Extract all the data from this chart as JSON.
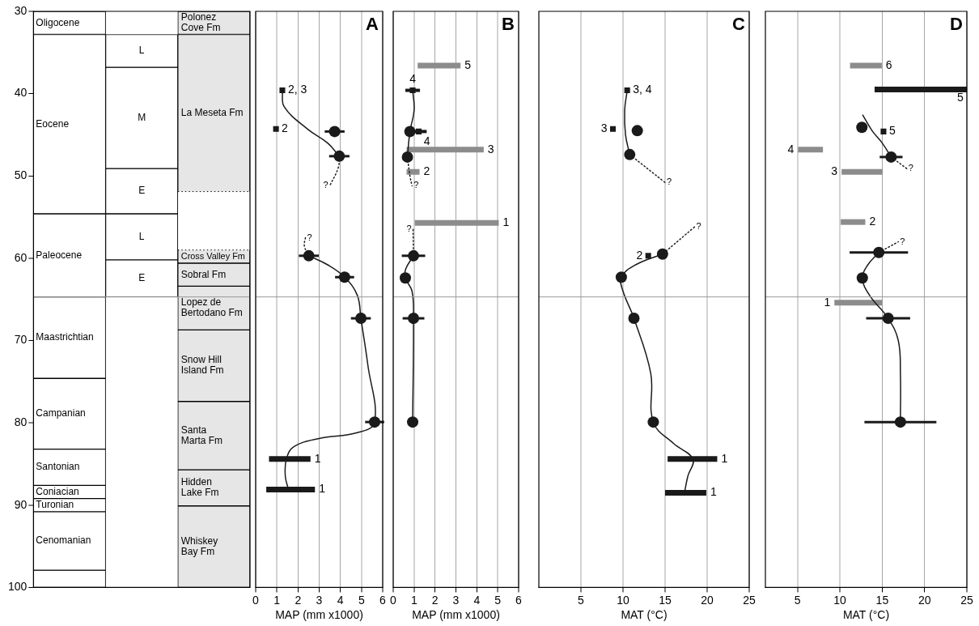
{
  "chart_data": [
    {
      "type": "bar",
      "categories": [
        null,
        null,
        null
      ],
      "ylim": [
        100,
        30
      ],
      "yticks": [
        30,
        40,
        50,
        60,
        70,
        80,
        90,
        100
      ],
      "tick_labels": "y",
      "series": [
        {
          "name": "Oligocene",
          "color": "#ffffff",
          "base": [
            30,
            null,
            null
          ],
          "values": [
            2.8,
            null,
            null
          ]
        },
        {
          "name": "Eocene",
          "color": "#ffffff",
          "base": [
            32.8,
            null,
            null
          ],
          "values": [
            21.8,
            null,
            null
          ]
        },
        {
          "name": "Paleocene",
          "color": "#ffffff",
          "base": [
            54.6,
            null,
            null
          ],
          "values": [
            10.1,
            null,
            null
          ]
        },
        {
          "name": "Maastrichtian",
          "color": "#ffffff",
          "base": [
            64.7,
            null,
            null
          ],
          "values": [
            9.9,
            null,
            null
          ]
        },
        {
          "name": "Campanian",
          "color": "#ffffff",
          "base": [
            74.6,
            null,
            null
          ],
          "values": [
            8.6,
            null,
            null
          ]
        },
        {
          "name": "Santonian",
          "color": "#ffffff",
          "base": [
            83.2,
            null,
            null
          ],
          "values": [
            4.4,
            null,
            null
          ]
        },
        {
          "name": "Coniacian",
          "color": "#ffffff",
          "base": [
            87.6,
            null,
            null
          ],
          "values": [
            1.6,
            null,
            null
          ]
        },
        {
          "name": "Turonian",
          "color": "#ffffff",
          "base": [
            89.2,
            null,
            null
          ],
          "values": [
            1.6,
            null,
            null
          ]
        },
        {
          "name": "Cenomanian",
          "color": "#ffffff",
          "base": [
            90.8,
            null,
            null
          ],
          "values": [
            7.1,
            null,
            null
          ]
        },
        {
          "color": "#ffffff",
          "base": [
            97.9,
            null,
            null
          ],
          "values": [
            2.1,
            null,
            null
          ]
        },
        {
          "name": "L",
          "color": "#ffffff",
          "base": [
            null,
            32.8,
            null
          ],
          "values": [
            null,
            4.0,
            null
          ]
        },
        {
          "name": "M",
          "color": "#ffffff",
          "base": [
            null,
            36.8,
            null
          ],
          "values": [
            null,
            12.3,
            null
          ]
        },
        {
          "name": "E",
          "color": "#ffffff",
          "base": [
            null,
            49.1,
            null
          ],
          "values": [
            null,
            5.5,
            null
          ]
        },
        {
          "name": "L",
          "color": "#ffffff",
          "base": [
            null,
            54.6,
            null
          ],
          "values": [
            null,
            5.6,
            null
          ]
        },
        {
          "name": "E",
          "color": "#ffffff",
          "base": [
            null,
            60.2,
            null
          ],
          "values": [
            null,
            4.5,
            null
          ]
        },
        {
          "name": "Polonez Cove Fm",
          "color": "#e6e6e6",
          "base": [
            null,
            null,
            30
          ],
          "values": [
            null,
            null,
            2.8
          ]
        },
        {
          "name": "La Meseta Fm",
          "color": "#e6e6e6",
          "line_style": "dotted",
          "base": [
            null,
            null,
            32.8
          ],
          "values": [
            null,
            null,
            19.1
          ]
        },
        {
          "name": "Cross Valley Fm",
          "color": "#e6e6e6",
          "line_style": "dotted",
          "base": [
            null,
            null,
            59.0
          ],
          "values": [
            null,
            null,
            1.6
          ]
        },
        {
          "name": "Sobral Fm",
          "color": "#e6e6e6",
          "base": [
            null,
            null,
            60.6
          ],
          "values": [
            null,
            null,
            2.8
          ]
        },
        {
          "name": "Lopez de Bertodano Fm",
          "color": "#e6e6e6",
          "base": [
            null,
            null,
            63.4
          ],
          "values": [
            null,
            null,
            5.3
          ]
        },
        {
          "name": "Snow Hill Island Fm",
          "color": "#e6e6e6",
          "base": [
            null,
            null,
            68.7
          ],
          "values": [
            null,
            null,
            8.7
          ]
        },
        {
          "name": "Santa Marta Fm",
          "color": "#e6e6e6",
          "base": [
            null,
            null,
            77.4
          ],
          "values": [
            null,
            null,
            8.3
          ]
        },
        {
          "name": "Hidden Lake Fm",
          "color": "#e6e6e6",
          "base": [
            null,
            null,
            85.7
          ],
          "values": [
            null,
            null,
            4.4
          ]
        },
        {
          "name": "Whiskey Bay Fm",
          "color": "#e6e6e6",
          "base": [
            null,
            null,
            90.1
          ],
          "values": [
            null,
            null,
            9.9
          ]
        }
      ],
      "ref_lines": [
        {
          "axis": "y",
          "value": 64.7,
          "color": "#999999"
        }
      ]
    },
    {
      "type": "scatter",
      "title": "A",
      "xlabel": "MAP (mm x1000)",
      "xlim": [
        0,
        6
      ],
      "xticks": [
        0,
        1,
        2,
        3,
        4,
        5,
        6
      ],
      "ylim": [
        100,
        30
      ],
      "tick_labels": "x",
      "grid": "x",
      "ref_lines": [
        {
          "axis": "y",
          "value": 64.7,
          "color": "#999999"
        }
      ],
      "annotations": [
        {
          "text": "2, 3",
          "x": 1.26,
          "y": 39.6
        },
        {
          "text": "2",
          "x": 0.96,
          "y": 44.3
        },
        {
          "text": "1",
          "x": 2.59,
          "y": 84.4
        },
        {
          "text": "1",
          "x": 2.8,
          "y": 88.1
        },
        {
          "text": "?",
          "x": 3.5,
          "y": 51.2
        },
        {
          "text": "?",
          "x": 2.35,
          "y": 57.5
        }
      ],
      "series": [
        {
          "type": "line",
          "line_style": "solid",
          "color": "#1a1a1a",
          "x": [
            1.26,
            1.35,
            2.45,
            3.4,
            3.95
          ],
          "values": [
            39.6,
            41.6,
            44.3,
            46,
            47.6
          ]
        },
        {
          "type": "line",
          "line_style": "dotted",
          "color": "#1a1a1a",
          "x": [
            3.95,
            3.9,
            3.5
          ],
          "values": [
            47.6,
            49,
            51.2
          ]
        },
        {
          "type": "line",
          "line_style": "dotted",
          "color": "#1a1a1a",
          "x": [
            2.35,
            2.3,
            2.51
          ],
          "values": [
            57.5,
            58.5,
            59.7
          ]
        },
        {
          "type": "line",
          "line_style": "solid",
          "color": "#1a1a1a",
          "x": [
            2.51,
            3.4,
            4.2,
            4.8,
            4.97,
            5.3,
            5.62,
            4.8,
            3.0,
            1.8,
            1.45,
            1.4,
            1.55
          ],
          "values": [
            59.7,
            60.8,
            62.3,
            64.5,
            67.3,
            73,
            79.9,
            81.2,
            81.9,
            82.9,
            84.4,
            86.5,
            88.1
          ]
        },
        {
          "type": "line",
          "line_style": "solid",
          "color": "#1a1a1a",
          "x": [
            0.63,
            2.59
          ],
          "values": [
            84.4,
            84.4
          ]
        },
        {
          "type": "line",
          "line_style": "solid",
          "color": "#1a1a1a",
          "x": [
            0.5,
            2.8
          ],
          "values": [
            88.1,
            88.1
          ]
        },
        {
          "type": "scatter",
          "marker": "circle",
          "color": "#1a1a1a",
          "x": [
            3.73,
            3.95,
            2.51,
            4.2,
            4.97,
            5.62
          ],
          "values": [
            44.6,
            47.6,
            59.7,
            62.3,
            67.3,
            79.9
          ],
          "xerrors": [
            0.47,
            0.48,
            0.47,
            0.45,
            0.47,
            0.45
          ]
        },
        {
          "type": "scatter",
          "marker": "square",
          "color": "#1a1a1a",
          "x": [
            1.26,
            0.96
          ],
          "values": [
            39.6,
            44.3
          ]
        }
      ]
    },
    {
      "type": "scatter",
      "title": "B",
      "xlabel": "MAP (mm x1000)",
      "xlim": [
        0,
        6
      ],
      "xticks": [
        0,
        1,
        2,
        3,
        4,
        5,
        6
      ],
      "ylim": [
        100,
        30
      ],
      "tick_labels": "x",
      "grid": "x",
      "ref_lines": [
        {
          "axis": "y",
          "value": 64.7,
          "color": "#999999"
        }
      ],
      "annotations": [
        {
          "text": "5",
          "x": 3.22,
          "y": 36.6
        },
        {
          "text": "4",
          "x": 0.93,
          "y": 39.6
        },
        {
          "text": "4",
          "x": 1.22,
          "y": 44.6
        },
        {
          "text": "3",
          "x": 4.33,
          "y": 46.8
        },
        {
          "text": "2",
          "x": 1.26,
          "y": 49.5
        },
        {
          "text": "1",
          "x": 5.05,
          "y": 55.7
        },
        {
          "text": "?",
          "x": 0.9,
          "y": 51.2
        },
        {
          "text": "?",
          "x": 0.95,
          "y": 56.5
        }
      ],
      "series": [
        {
          "type": "line",
          "line_style": "solid",
          "color": "#1a1a1a",
          "x": [
            0.93,
            1.0,
            0.8,
            0.68
          ],
          "values": [
            39.6,
            42,
            44.6,
            47.7
          ]
        },
        {
          "type": "line",
          "line_style": "dotted",
          "color": "#1a1a1a",
          "x": [
            0.68,
            0.8,
            0.9
          ],
          "values": [
            47.7,
            50,
            51.2
          ]
        },
        {
          "type": "line",
          "line_style": "dotted",
          "color": "#1a1a1a",
          "x": [
            0.95,
            0.97
          ],
          "values": [
            56.5,
            59.7
          ]
        },
        {
          "type": "line",
          "line_style": "solid",
          "color": "#1a1a1a",
          "x": [
            0.97,
            0.6,
            0.58,
            0.9,
            0.97,
            0.93
          ],
          "values": [
            59.7,
            61.3,
            62.4,
            64,
            67.3,
            79.9
          ]
        },
        {
          "type": "line",
          "line_style": "solid",
          "color": "#8c8c8c",
          "x": [
            1.17,
            3.22
          ],
          "values": [
            36.6,
            36.6
          ]
        },
        {
          "type": "line",
          "line_style": "solid",
          "color": "#8c8c8c",
          "x": [
            0.64,
            4.33
          ],
          "values": [
            46.8,
            46.8
          ]
        },
        {
          "type": "line",
          "line_style": "solid",
          "color": "#8c8c8c",
          "x": [
            0.64,
            1.26
          ],
          "values": [
            49.5,
            49.5
          ]
        },
        {
          "type": "line",
          "line_style": "solid",
          "color": "#8c8c8c",
          "x": [
            1.03,
            5.05
          ],
          "values": [
            55.7,
            55.7
          ]
        },
        {
          "type": "scatter",
          "marker": "circle",
          "color": "#1a1a1a",
          "x": [
            0.8,
            0.68,
            0.97,
            0.58,
            0.97,
            0.93
          ],
          "values": [
            44.6,
            47.7,
            59.7,
            62.4,
            67.3,
            79.9
          ],
          "xerrors": [
            null,
            null,
            0.56,
            null,
            0.52,
            null
          ]
        },
        {
          "type": "scatter",
          "marker": "square",
          "color": "#1a1a1a",
          "x": [
            0.93,
            1.22
          ],
          "values": [
            39.6,
            44.6
          ],
          "xerrors": [
            0.35,
            0.38
          ]
        }
      ]
    },
    {
      "type": "scatter",
      "title": "C",
      "xlabel": "MAT (°C)",
      "xlim": [
        0,
        25
      ],
      "xticks": [
        5,
        10,
        15,
        20,
        25
      ],
      "ylim": [
        100,
        30
      ],
      "tick_labels": "x",
      "grid": "x",
      "ref_lines": [
        {
          "axis": "y",
          "value": 64.7,
          "color": "#999999"
        }
      ],
      "annotations": [
        {
          "text": "3, 4",
          "x": 10.5,
          "y": 39.6
        },
        {
          "text": "3",
          "x": 8.8,
          "y": 44.3
        },
        {
          "text": "2",
          "x": 13.0,
          "y": 59.7
        },
        {
          "text": "1",
          "x": 21.2,
          "y": 84.4
        },
        {
          "text": "1",
          "x": 19.9,
          "y": 88.5
        },
        {
          "text": "?",
          "x": 15.0,
          "y": 50.8
        },
        {
          "text": "?",
          "x": 18.5,
          "y": 56.2
        }
      ],
      "series": [
        {
          "type": "line",
          "line_style": "solid",
          "color": "#1a1a1a",
          "x": [
            10.5,
            10.2,
            10.3,
            10.8
          ],
          "values": [
            39.6,
            42,
            45,
            47.4
          ]
        },
        {
          "type": "line",
          "line_style": "dotted",
          "color": "#1a1a1a",
          "x": [
            10.8,
            15.0
          ],
          "values": [
            47.4,
            50.8
          ]
        },
        {
          "type": "line",
          "line_style": "dotted",
          "color": "#1a1a1a",
          "x": [
            18.5,
            14.7
          ],
          "values": [
            56.2,
            59.5
          ]
        },
        {
          "type": "line",
          "line_style": "solid",
          "color": "#1a1a1a",
          "x": [
            14.7,
            11.5,
            9.8,
            10.0,
            11.3,
            13.3,
            13.6,
            16.0,
            18.3,
            17.7,
            17.3
          ],
          "values": [
            59.5,
            60.8,
            62.3,
            64,
            67.3,
            74,
            79.9,
            82.5,
            84.4,
            86.5,
            88.5
          ]
        },
        {
          "type": "line",
          "line_style": "solid",
          "color": "#1a1a1a",
          "x": [
            15.3,
            21.2
          ],
          "values": [
            84.4,
            84.4
          ]
        },
        {
          "type": "line",
          "line_style": "solid",
          "color": "#1a1a1a",
          "x": [
            15.0,
            19.9
          ],
          "values": [
            88.5,
            88.5
          ]
        },
        {
          "type": "scatter",
          "marker": "circle",
          "color": "#1a1a1a",
          "x": [
            11.7,
            10.8,
            14.7,
            9.8,
            11.3,
            13.6
          ],
          "values": [
            44.5,
            47.4,
            59.5,
            62.3,
            67.3,
            79.9
          ]
        },
        {
          "type": "scatter",
          "marker": "square",
          "color": "#1a1a1a",
          "x": [
            10.5,
            8.8,
            13.0
          ],
          "values": [
            39.6,
            44.3,
            59.7
          ]
        }
      ]
    },
    {
      "type": "scatter",
      "title": "D",
      "xlabel": "MAT (°C)",
      "xlim": [
        1.2,
        25
      ],
      "xticks": [
        5,
        10,
        15,
        20,
        25
      ],
      "ylim": [
        100,
        30
      ],
      "tick_labels": "x",
      "grid": "x",
      "ref_lines": [
        {
          "axis": "y",
          "value": 64.7,
          "color": "#999999"
        }
      ],
      "annotations": [
        {
          "text": "6",
          "x": 14.95,
          "y": 36.6
        },
        {
          "text": "5",
          "x": 25,
          "y": 39.5
        },
        {
          "text": "5",
          "x": 15.15,
          "y": 44.6
        },
        {
          "text": "4",
          "x": 5.05,
          "y": 46.8
        },
        {
          "text": "3",
          "x": 10.2,
          "y": 49.5
        },
        {
          "text": "2",
          "x": 13.0,
          "y": 55.6
        },
        {
          "text": "1",
          "x": 9.35,
          "y": 65.4
        },
        {
          "text": "?",
          "x": 17.9,
          "y": 49.1
        },
        {
          "text": "?",
          "x": 16.9,
          "y": 58.0
        }
      ],
      "series": [
        {
          "type": "line",
          "line_style": "solid",
          "color": "#1a1a1a",
          "x": [
            12.7,
            13.8,
            15.0,
            16.05
          ],
          "values": [
            42.6,
            44.5,
            46,
            47.7
          ]
        },
        {
          "type": "line",
          "line_style": "dotted",
          "color": "#1a1a1a",
          "x": [
            16.05,
            17.9
          ],
          "values": [
            47.7,
            49.1
          ]
        },
        {
          "type": "line",
          "line_style": "dotted",
          "color": "#1a1a1a",
          "x": [
            14.6,
            16.9
          ],
          "values": [
            59.3,
            58.0
          ]
        },
        {
          "type": "line",
          "line_style": "solid",
          "color": "#1a1a1a",
          "x": [
            14.6,
            13.3,
            12.65,
            13.5,
            15.7,
            16.9,
            17.15,
            17.15
          ],
          "values": [
            59.3,
            60.8,
            62.4,
            64.5,
            67.3,
            70,
            74,
            79.9
          ]
        },
        {
          "type": "line",
          "line_style": "solid",
          "color": "#8c8c8c",
          "x": [
            11.2,
            14.95
          ],
          "values": [
            36.6,
            36.6
          ]
        },
        {
          "type": "line",
          "line_style": "solid",
          "color": "#1a1a1a",
          "x": [
            14.1,
            25
          ],
          "values": [
            39.5,
            39.5
          ]
        },
        {
          "type": "line",
          "line_style": "solid",
          "color": "#8c8c8c",
          "x": [
            5.05,
            8.0
          ],
          "values": [
            46.8,
            46.8
          ]
        },
        {
          "type": "line",
          "line_style": "solid",
          "color": "#8c8c8c",
          "x": [
            10.2,
            15.05
          ],
          "values": [
            49.5,
            49.5
          ]
        },
        {
          "type": "line",
          "line_style": "solid",
          "color": "#8c8c8c",
          "x": [
            10.1,
            13.0
          ],
          "values": [
            55.6,
            55.6
          ]
        },
        {
          "type": "line",
          "line_style": "solid",
          "color": "#8c8c8c",
          "x": [
            9.35,
            15.0
          ],
          "values": [
            65.4,
            65.4
          ]
        },
        {
          "type": "scatter",
          "marker": "circle",
          "color": "#1a1a1a",
          "x": [
            12.6,
            16.05,
            14.6,
            12.65,
            15.7,
            17.15
          ],
          "values": [
            44.1,
            47.7,
            59.3,
            62.4,
            67.3,
            79.9
          ],
          "xerrors": [
            null,
            1.35,
            3.45,
            null,
            2.6,
            4.25
          ]
        },
        {
          "type": "scatter",
          "marker": "square",
          "color": "#1a1a1a",
          "x": [
            15.15
          ],
          "values": [
            44.6
          ]
        }
      ]
    }
  ]
}
